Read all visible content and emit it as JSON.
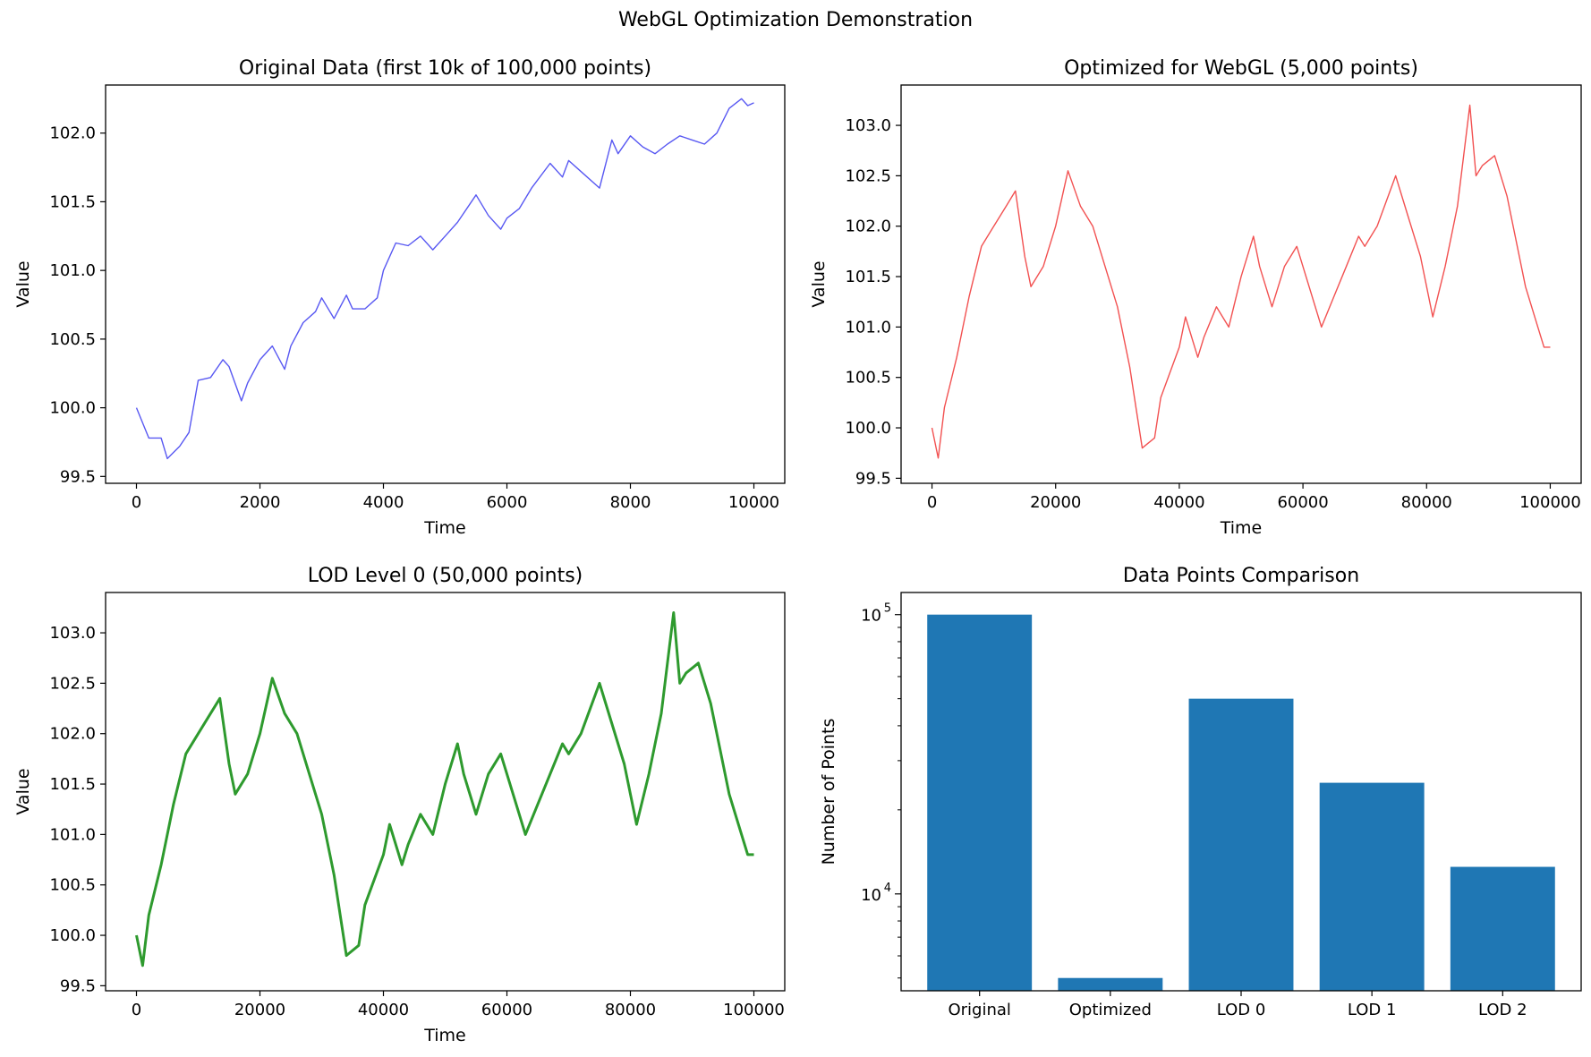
{
  "figure_title": "WebGL Optimization Demonstration",
  "chart_data": [
    {
      "type": "line",
      "title": "Original Data (first 10k of 100,000 points)",
      "xlabel": "Time",
      "ylabel": "Value",
      "xlim": [
        -500,
        10500
      ],
      "ylim": [
        99.45,
        102.35
      ],
      "xticks": [
        0,
        2000,
        4000,
        6000,
        8000,
        10000
      ],
      "xtick_labels": [
        "0",
        "2000",
        "4000",
        "6000",
        "8000",
        "10000"
      ],
      "yticks": [
        99.5,
        100.0,
        100.5,
        101.0,
        101.5,
        102.0
      ],
      "ytick_labels": [
        "99.5",
        "100.0",
        "100.5",
        "101.0",
        "101.5",
        "102.0"
      ],
      "grid": false,
      "color": "#3b3bf0",
      "series": [
        {
          "x": [
            0,
            200,
            400,
            500,
            700,
            850,
            1000,
            1200,
            1400,
            1500,
            1700,
            1800,
            2000,
            2200,
            2400,
            2500,
            2700,
            2900,
            3000,
            3200,
            3400,
            3500,
            3700,
            3900,
            4000,
            4200,
            4400,
            4600,
            4800,
            5000,
            5200,
            5500,
            5700,
            5900,
            6000,
            6200,
            6400,
            6700,
            6900,
            7000,
            7200,
            7500,
            7700,
            7800,
            8000,
            8200,
            8400,
            8600,
            8800,
            9000,
            9200,
            9400,
            9600,
            9800,
            9900,
            10000
          ],
          "y": [
            100.0,
            99.78,
            99.78,
            99.63,
            99.72,
            99.82,
            100.2,
            100.22,
            100.35,
            100.3,
            100.05,
            100.18,
            100.35,
            100.45,
            100.28,
            100.45,
            100.62,
            100.7,
            100.8,
            100.65,
            100.82,
            100.72,
            100.72,
            100.8,
            101.0,
            101.2,
            101.18,
            101.25,
            101.15,
            101.25,
            101.35,
            101.55,
            101.4,
            101.3,
            101.38,
            101.45,
            101.6,
            101.78,
            101.68,
            101.8,
            101.72,
            101.6,
            101.95,
            101.85,
            101.98,
            101.9,
            101.85,
            101.92,
            101.98,
            101.95,
            101.92,
            102.0,
            102.18,
            102.25,
            102.2,
            102.22
          ]
        }
      ]
    },
    {
      "type": "line",
      "title": "Optimized for WebGL (5,000 points)",
      "xlabel": "Time",
      "ylabel": "Value",
      "xlim": [
        -5000,
        105000
      ],
      "ylim": [
        99.45,
        103.4
      ],
      "xticks": [
        0,
        20000,
        40000,
        60000,
        80000,
        100000
      ],
      "xtick_labels": [
        "0",
        "20000",
        "40000",
        "60000",
        "80000",
        "100000"
      ],
      "yticks": [
        99.5,
        100.0,
        100.5,
        101.0,
        101.5,
        102.0,
        102.5,
        103.0
      ],
      "ytick_labels": [
        "99.5",
        "100.0",
        "100.5",
        "101.0",
        "101.5",
        "102.0",
        "102.5",
        "103.0"
      ],
      "grid": false,
      "color": "#f03232",
      "series": [
        {
          "x": [
            0,
            1000,
            2000,
            4000,
            6000,
            8000,
            10000,
            12000,
            13500,
            15000,
            16000,
            18000,
            20000,
            22000,
            24000,
            26000,
            28000,
            30000,
            32000,
            33000,
            34000,
            36000,
            37000,
            40000,
            41000,
            43000,
            44000,
            46000,
            48000,
            50000,
            52000,
            53000,
            55000,
            57000,
            59000,
            61000,
            63000,
            65000,
            67000,
            69000,
            70000,
            72000,
            75000,
            77000,
            79000,
            81000,
            83000,
            85000,
            87000,
            88000,
            89000,
            91000,
            93000,
            95000,
            96000,
            98000,
            99000,
            100000
          ],
          "y": [
            100.0,
            99.7,
            100.2,
            100.7,
            101.3,
            101.8,
            102.0,
            102.2,
            102.35,
            101.7,
            101.4,
            101.6,
            102.0,
            102.55,
            102.2,
            102.0,
            101.6,
            101.2,
            100.6,
            100.2,
            99.8,
            99.9,
            100.3,
            100.8,
            101.1,
            100.7,
            100.9,
            101.2,
            101.0,
            101.5,
            101.9,
            101.6,
            101.2,
            101.6,
            101.8,
            101.4,
            101.0,
            101.3,
            101.6,
            101.9,
            101.8,
            102.0,
            102.5,
            102.1,
            101.7,
            101.1,
            101.6,
            102.2,
            103.2,
            102.5,
            102.6,
            102.7,
            102.3,
            101.7,
            101.4,
            101.0,
            100.8,
            100.8
          ]
        }
      ]
    },
    {
      "type": "line",
      "title": "LOD Level 0 (50,000 points)",
      "xlabel": "Time",
      "ylabel": "Value",
      "xlim": [
        -5000,
        105000
      ],
      "ylim": [
        99.45,
        103.4
      ],
      "xticks": [
        0,
        20000,
        40000,
        60000,
        80000,
        100000
      ],
      "xtick_labels": [
        "0",
        "20000",
        "40000",
        "60000",
        "80000",
        "100000"
      ],
      "yticks": [
        99.5,
        100.0,
        100.5,
        101.0,
        101.5,
        102.0,
        102.5,
        103.0
      ],
      "ytick_labels": [
        "99.5",
        "100.0",
        "100.5",
        "101.0",
        "101.5",
        "102.0",
        "102.5",
        "103.0"
      ],
      "grid": false,
      "color": "#2e9a2e",
      "series": [
        {
          "x": [
            0,
            1000,
            2000,
            4000,
            6000,
            8000,
            10000,
            12000,
            13500,
            15000,
            16000,
            18000,
            20000,
            22000,
            24000,
            26000,
            28000,
            30000,
            32000,
            33000,
            34000,
            36000,
            37000,
            40000,
            41000,
            43000,
            44000,
            46000,
            48000,
            50000,
            52000,
            53000,
            55000,
            57000,
            59000,
            61000,
            63000,
            65000,
            67000,
            69000,
            70000,
            72000,
            75000,
            77000,
            79000,
            81000,
            83000,
            85000,
            87000,
            88000,
            89000,
            91000,
            93000,
            95000,
            96000,
            98000,
            99000,
            100000
          ],
          "y": [
            100.0,
            99.7,
            100.2,
            100.7,
            101.3,
            101.8,
            102.0,
            102.2,
            102.35,
            101.7,
            101.4,
            101.6,
            102.0,
            102.55,
            102.2,
            102.0,
            101.6,
            101.2,
            100.6,
            100.2,
            99.8,
            99.9,
            100.3,
            100.8,
            101.1,
            100.7,
            100.9,
            101.2,
            101.0,
            101.5,
            101.9,
            101.6,
            101.2,
            101.6,
            101.8,
            101.4,
            101.0,
            101.3,
            101.6,
            101.9,
            101.8,
            102.0,
            102.5,
            102.1,
            101.7,
            101.1,
            101.6,
            102.2,
            103.2,
            102.5,
            102.6,
            102.7,
            102.3,
            101.7,
            101.4,
            101.0,
            100.8,
            100.8
          ]
        }
      ]
    },
    {
      "type": "bar",
      "title": "Data Points Comparison",
      "xlabel": "",
      "ylabel": "Number of Points",
      "yscale": "log",
      "ylim": [
        4500,
        120000
      ],
      "categories": [
        "Original",
        "Optimized",
        "LOD 0",
        "LOD 1",
        "LOD 2"
      ],
      "values": [
        100000,
        5000,
        50000,
        25000,
        12500
      ],
      "ytick_major": [
        10000,
        100000
      ],
      "ytick_labels": [
        {
          "base": "10",
          "exp": "4"
        },
        {
          "base": "10",
          "exp": "5"
        }
      ],
      "grid": false,
      "color": "#1f77b4"
    }
  ]
}
